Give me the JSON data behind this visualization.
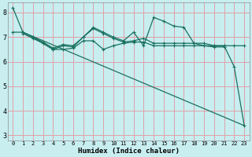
{
  "bg_color": "#c8eef0",
  "grid_color": "#e0a0a8",
  "line_color": "#1a7060",
  "xlabel": "Humidex (Indice chaleur)",
  "ylim": [
    2.8,
    8.4
  ],
  "xlim": [
    -0.5,
    23.5
  ],
  "yticks": [
    3,
    4,
    5,
    6,
    7,
    8
  ],
  "xticks": [
    0,
    1,
    2,
    3,
    4,
    5,
    6,
    7,
    8,
    9,
    10,
    11,
    12,
    13,
    14,
    15,
    16,
    17,
    18,
    19,
    20,
    21,
    22,
    23
  ],
  "line1_x": [
    0,
    1,
    2,
    3,
    4,
    5,
    6,
    7,
    8,
    9,
    10,
    11,
    12,
    13,
    14,
    15,
    16,
    17,
    18,
    19,
    20,
    21,
    22,
    23
  ],
  "line1_y": [
    8.2,
    7.2,
    7.0,
    6.75,
    6.5,
    6.65,
    6.6,
    7.0,
    7.4,
    7.2,
    7.0,
    6.85,
    7.2,
    6.65,
    7.8,
    7.65,
    7.45,
    7.4,
    6.75,
    6.75,
    6.65,
    6.65,
    5.8,
    3.4
  ],
  "line2_x": [
    0,
    1,
    2,
    3,
    4,
    5,
    6,
    7,
    8,
    9,
    10,
    11,
    12,
    13,
    14,
    15,
    16,
    17,
    18,
    19,
    20,
    21,
    22,
    23
  ],
  "line2_y": [
    7.2,
    7.2,
    7.0,
    6.8,
    6.55,
    6.7,
    6.65,
    7.0,
    7.35,
    7.15,
    6.95,
    6.8,
    6.85,
    6.95,
    6.75,
    6.75,
    6.75,
    6.75,
    6.75,
    6.65,
    6.65,
    6.65,
    6.65,
    6.65
  ],
  "line3_x": [
    1,
    2,
    3,
    4,
    5,
    6,
    7,
    8,
    9,
    10,
    11,
    12,
    13,
    14,
    15,
    16,
    17,
    18,
    19,
    20,
    21
  ],
  "line3_y": [
    7.15,
    6.95,
    6.75,
    6.5,
    6.5,
    6.55,
    6.85,
    6.85,
    6.5,
    6.65,
    6.75,
    6.8,
    6.8,
    6.65,
    6.65,
    6.65,
    6.65,
    6.65,
    6.65,
    6.6,
    6.6
  ],
  "line4_x": [
    1,
    23
  ],
  "line4_y": [
    7.2,
    3.4
  ]
}
